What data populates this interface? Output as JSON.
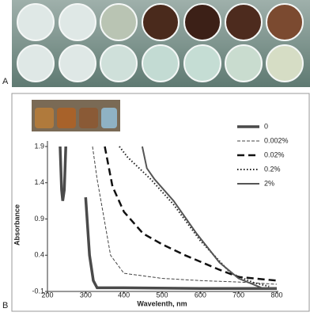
{
  "panel_labels": [
    "A",
    "B"
  ],
  "chart_data": {
    "type": "line",
    "xlabel": "Wavelenth, nm",
    "ylabel": "Absorbance",
    "xlim": [
      200,
      800
    ],
    "ylim": [
      -0.1,
      1.9
    ],
    "xticks": [
      200,
      300,
      400,
      500,
      600,
      700,
      800
    ],
    "yticks": [
      -0.1,
      0.4,
      0.9,
      1.4,
      1.9
    ],
    "series": [
      {
        "name": "0",
        "color": "#4a4a4a",
        "width": 3.5,
        "dash": "none",
        "x": [
          233,
          237,
          240,
          244,
          248,
          290,
          300,
          310,
          320,
          330,
          400,
          600,
          800
        ],
        "values": [
          1.9,
          1.3,
          1.15,
          1.3,
          1.9,
          null,
          1.2,
          0.4,
          0.05,
          -0.05,
          -0.05,
          -0.06,
          -0.06
        ]
      },
      {
        "name": "0.002%",
        "color": "#444444",
        "width": 1,
        "dash": "4 2",
        "x": [
          318,
          330,
          345,
          365,
          400,
          500,
          600,
          700,
          800
        ],
        "values": [
          1.9,
          1.45,
          1.0,
          0.4,
          0.15,
          0.08,
          0.05,
          0.03,
          0
        ]
      },
      {
        "name": "0.02%",
        "color": "#111111",
        "width": 2.5,
        "dash": "9 5",
        "x": [
          350,
          370,
          400,
          450,
          500,
          560,
          650,
          700,
          800
        ],
        "values": [
          1.9,
          1.35,
          1.0,
          0.7,
          0.55,
          0.4,
          0.2,
          0.1,
          0.05
        ]
      },
      {
        "name": "0.2%",
        "color": "#222222",
        "width": 2,
        "dash": "1.5 2.5",
        "x": [
          388,
          410,
          440,
          470,
          530,
          600,
          680,
          740,
          780
        ],
        "values": [
          1.9,
          1.75,
          1.6,
          1.45,
          1.1,
          0.6,
          0.15,
          0.02,
          -0.03
        ]
      },
      {
        "name": "2%",
        "color": "#555555",
        "width": 2,
        "dash": "none",
        "x": [
          448,
          460,
          480,
          530,
          590,
          650,
          700,
          760,
          800
        ],
        "values": [
          1.9,
          1.6,
          1.45,
          1.15,
          0.7,
          0.3,
          0.08,
          -0.05,
          -0.06
        ]
      }
    ]
  }
}
